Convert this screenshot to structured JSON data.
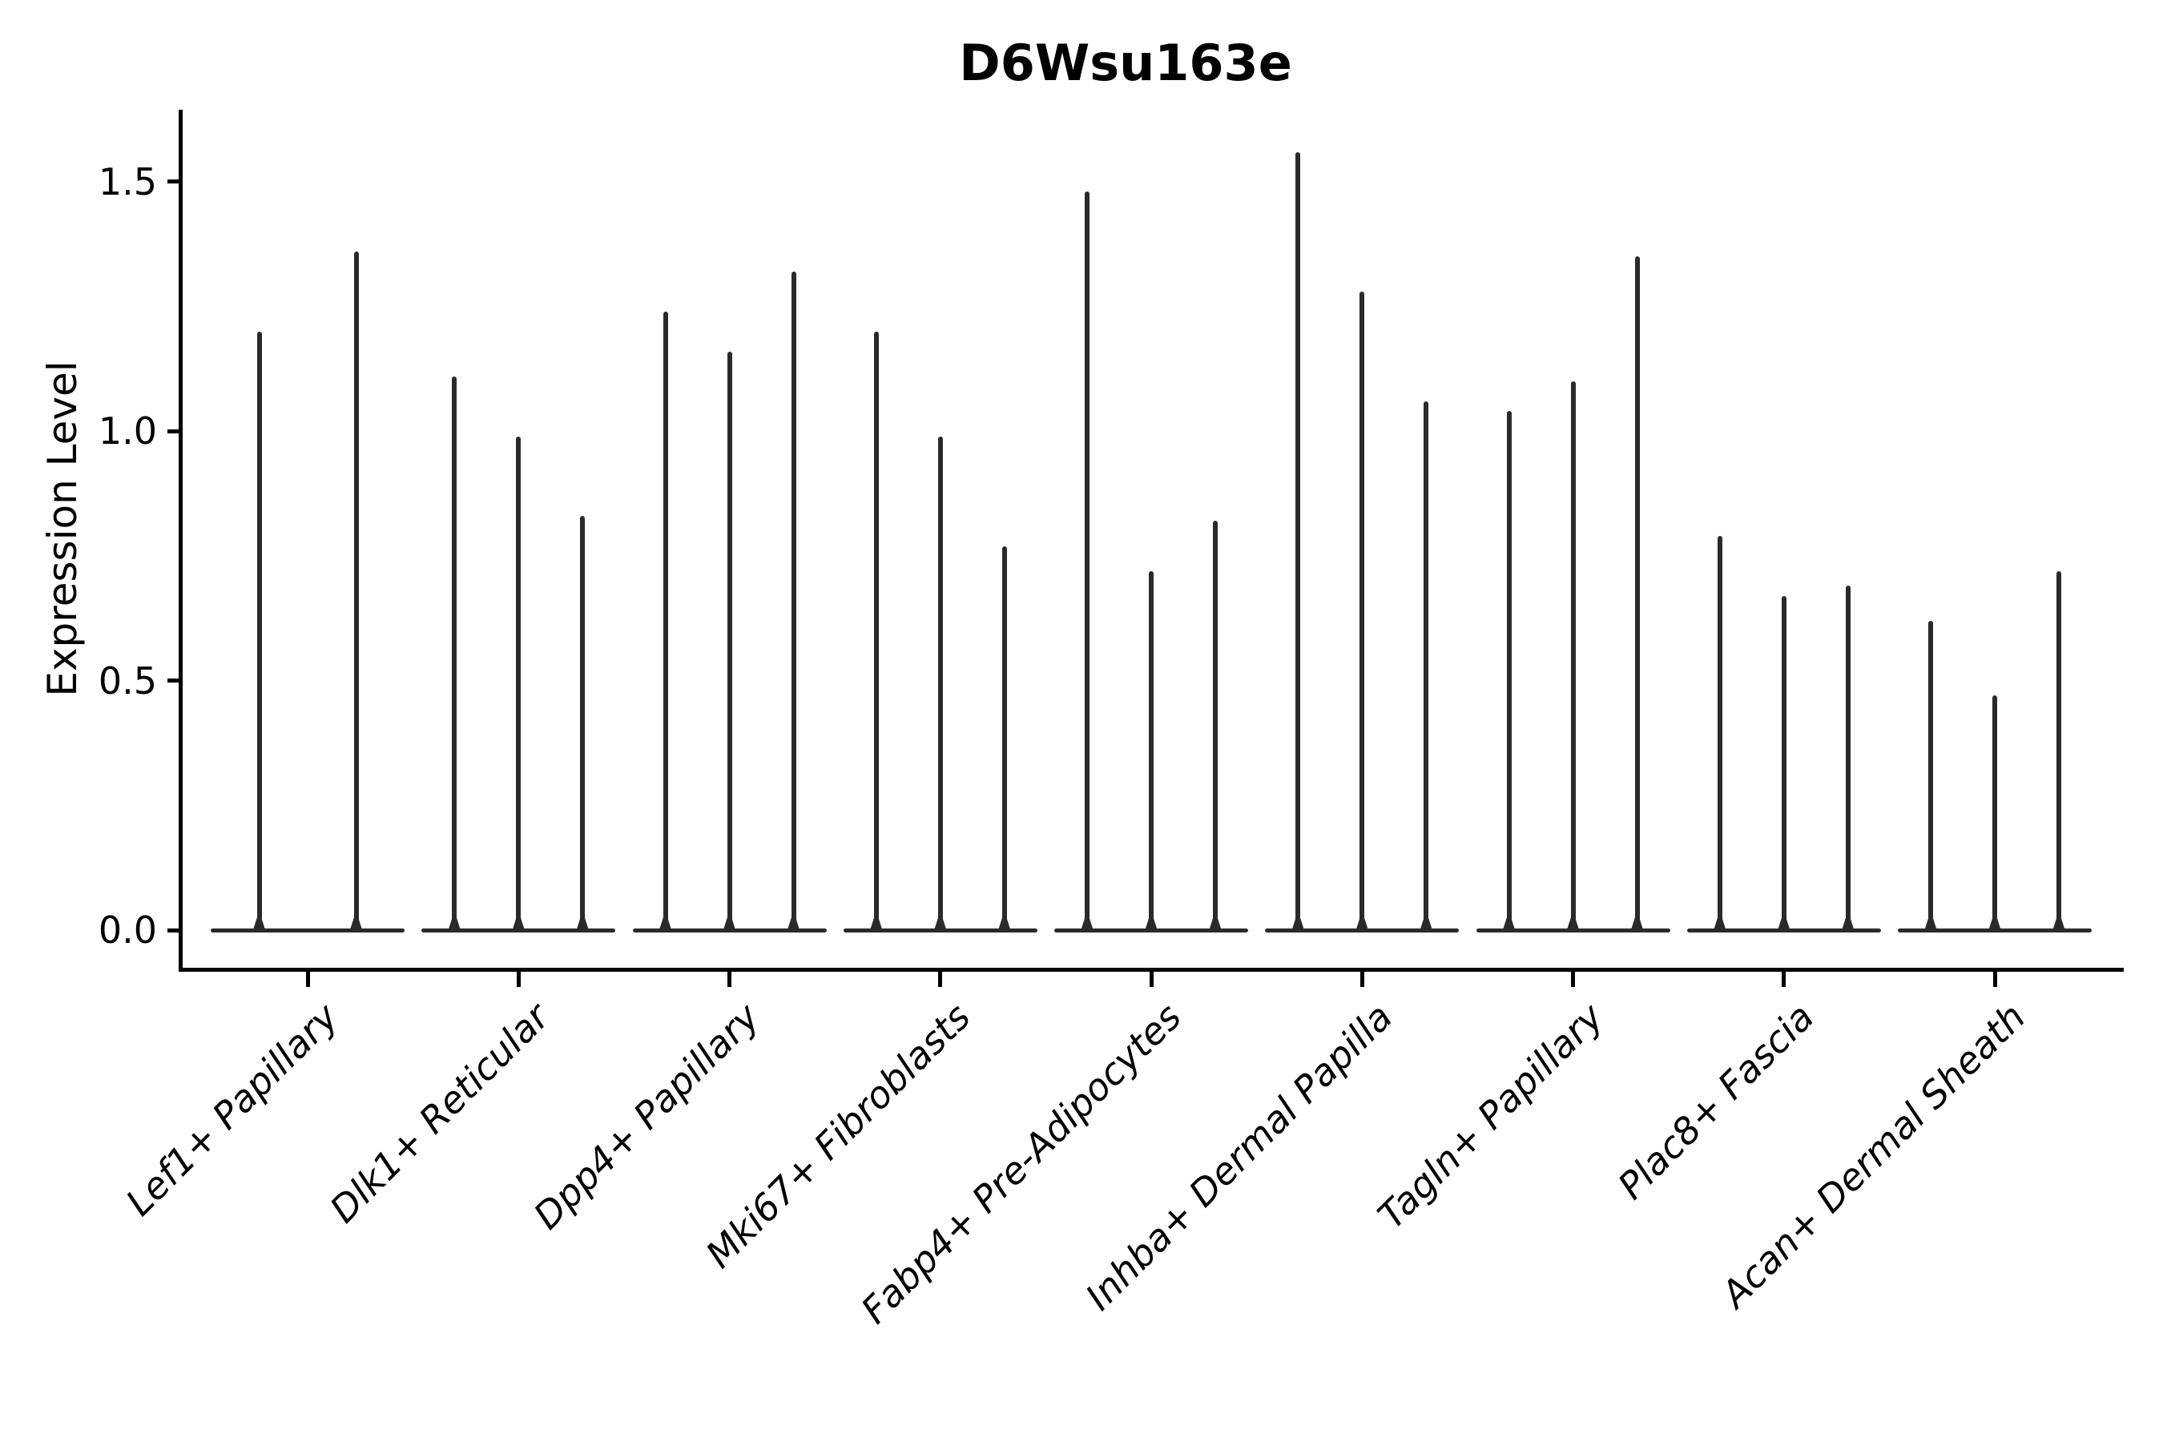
{
  "title": "D6Wsu163e",
  "axes": {
    "ylabel": "Expression Level",
    "ytick_labels": [
      "0.0",
      "0.5",
      "1.0",
      "1.5"
    ]
  },
  "chart_data": {
    "type": "violin",
    "title": "D6Wsu163e",
    "xlabel": "",
    "ylabel": "Expression Level",
    "ylim": [
      -0.08,
      1.65
    ],
    "yticks": [
      0.0,
      0.5,
      1.0,
      1.5
    ],
    "grid": false,
    "legend": null,
    "description": "Single-gene expression violin plot. Each cell-type category contains 2-3 very narrow violins: almost all density mass sits at expression 0 (wide flat base) with a thin spike rising to the maximum expression value listed in violin_maxima.",
    "categories": [
      "Lef1+ Papillary",
      "Dlk1+ Reticular",
      "Dpp4+ Papillary",
      "Mki67+ Fibroblasts",
      "Fabp4+ Pre-Adipocytes",
      "Inhba+ Dermal Papilla",
      "Tagln+ Papillary",
      "Plac8+ Fascia",
      "Acan+ Dermal Sheath"
    ],
    "groups": [
      {
        "category": "Lef1+ Papillary",
        "violin_maxima": [
          1.2,
          1.36
        ]
      },
      {
        "category": "Dlk1+ Reticular",
        "violin_maxima": [
          1.11,
          0.99,
          0.83
        ]
      },
      {
        "category": "Dpp4+ Papillary",
        "violin_maxima": [
          1.24,
          1.16,
          1.32
        ]
      },
      {
        "category": "Mki67+ Fibroblasts",
        "violin_maxima": [
          1.2,
          0.99,
          0.77
        ]
      },
      {
        "category": "Fabp4+ Pre-Adipocytes",
        "violin_maxima": [
          1.48,
          0.72,
          0.82
        ]
      },
      {
        "category": "Inhba+ Dermal Papilla",
        "violin_maxima": [
          1.56,
          1.28,
          1.06
        ]
      },
      {
        "category": "Tagln+ Papillary",
        "violin_maxima": [
          1.04,
          1.1,
          1.35
        ]
      },
      {
        "category": "Plac8+ Fascia",
        "violin_maxima": [
          0.79,
          0.67,
          0.69
        ]
      },
      {
        "category": "Acan+ Dermal Sheath",
        "violin_maxima": [
          0.62,
          0.47,
          0.72
        ]
      }
    ],
    "colors": {
      "violin": "#2a2a2a",
      "axis": "#000000",
      "text": "#000000",
      "background": "#ffffff"
    }
  }
}
